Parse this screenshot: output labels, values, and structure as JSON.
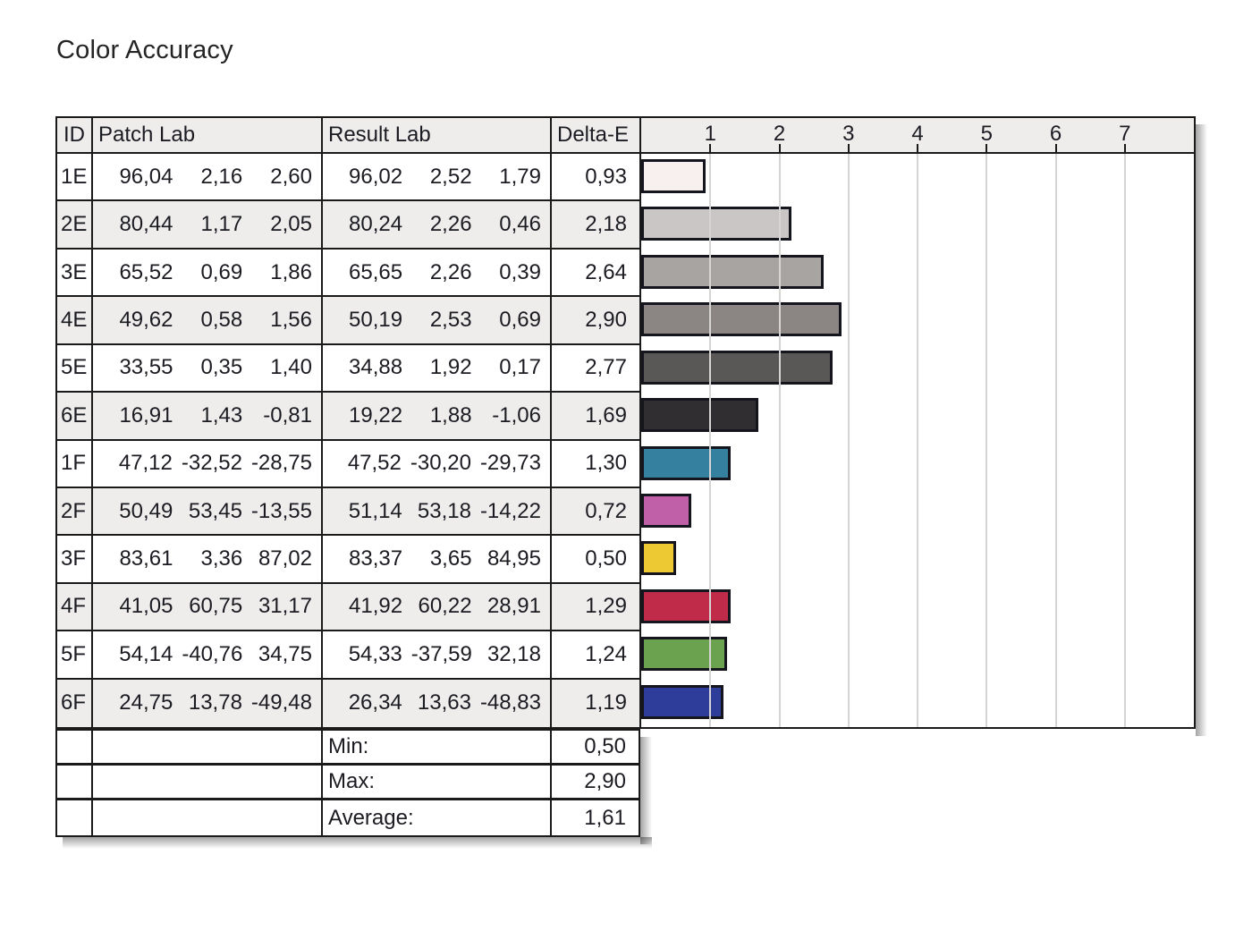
{
  "title": "Color Accuracy",
  "columns": {
    "id": "ID",
    "patch": "Patch Lab",
    "result": "Result Lab",
    "delta": "Delta-E"
  },
  "axis": {
    "ticks": [
      1,
      2,
      3,
      4,
      5,
      6,
      7
    ],
    "max": 8
  },
  "rows": [
    {
      "id": "1E",
      "patch": [
        "96,04",
        "2,16",
        "2,60"
      ],
      "result": [
        "96,02",
        "2,52",
        "1,79"
      ],
      "delta": "0,93",
      "delta_value": 0.93,
      "color": "#f8f0ee"
    },
    {
      "id": "2E",
      "patch": [
        "80,44",
        "1,17",
        "2,05"
      ],
      "result": [
        "80,24",
        "2,26",
        "0,46"
      ],
      "delta": "2,18",
      "delta_value": 2.18,
      "color": "#c9c6c5"
    },
    {
      "id": "3E",
      "patch": [
        "65,52",
        "0,69",
        "1,86"
      ],
      "result": [
        "65,65",
        "2,26",
        "0,39"
      ],
      "delta": "2,64",
      "delta_value": 2.64,
      "color": "#a8a4a2"
    },
    {
      "id": "4E",
      "patch": [
        "49,62",
        "0,58",
        "1,56"
      ],
      "result": [
        "50,19",
        "2,53",
        "0,69"
      ],
      "delta": "2,90",
      "delta_value": 2.9,
      "color": "#8b8684"
    },
    {
      "id": "5E",
      "patch": [
        "33,55",
        "0,35",
        "1,40"
      ],
      "result": [
        "34,88",
        "1,92",
        "0,17"
      ],
      "delta": "2,77",
      "delta_value": 2.77,
      "color": "#5a5757"
    },
    {
      "id": "6E",
      "patch": [
        "16,91",
        "1,43",
        "-0,81"
      ],
      "result": [
        "19,22",
        "1,88",
        "-1,06"
      ],
      "delta": "1,69",
      "delta_value": 1.69,
      "color": "#302e30"
    },
    {
      "id": "1F",
      "patch": [
        "47,12",
        "-32,52",
        "-28,75"
      ],
      "result": [
        "47,52",
        "-30,20",
        "-29,73"
      ],
      "delta": "1,30",
      "delta_value": 1.3,
      "color": "#35809f"
    },
    {
      "id": "2F",
      "patch": [
        "50,49",
        "53,45",
        "-13,55"
      ],
      "result": [
        "51,14",
        "53,18",
        "-14,22"
      ],
      "delta": "0,72",
      "delta_value": 0.72,
      "color": "#bf60a8"
    },
    {
      "id": "3F",
      "patch": [
        "83,61",
        "3,36",
        "87,02"
      ],
      "result": [
        "83,37",
        "3,65",
        "84,95"
      ],
      "delta": "0,50",
      "delta_value": 0.5,
      "color": "#edca33"
    },
    {
      "id": "4F",
      "patch": [
        "41,05",
        "60,75",
        "31,17"
      ],
      "result": [
        "41,92",
        "60,22",
        "28,91"
      ],
      "delta": "1,29",
      "delta_value": 1.29,
      "color": "#bf2b48"
    },
    {
      "id": "5F",
      "patch": [
        "54,14",
        "-40,76",
        "34,75"
      ],
      "result": [
        "54,33",
        "-37,59",
        "32,18"
      ],
      "delta": "1,24",
      "delta_value": 1.24,
      "color": "#6ba24f"
    },
    {
      "id": "6F",
      "patch": [
        "24,75",
        "13,78",
        "-49,48"
      ],
      "result": [
        "26,34",
        "13,63",
        "-48,83"
      ],
      "delta": "1,19",
      "delta_value": 1.19,
      "color": "#2e3d9a"
    }
  ],
  "summary": [
    {
      "label": "Min:",
      "value": "0,50"
    },
    {
      "label": "Max:",
      "value": "2,90"
    },
    {
      "label": "Average:",
      "value": "1,61"
    }
  ],
  "colors": {
    "border": "#1a1a1a",
    "row_shade": "#efedec",
    "gridline": "#d6d5d4",
    "bar_border": "#15151d"
  },
  "chart_data": {
    "type": "bar",
    "orientation": "horizontal",
    "title": "Color Accuracy",
    "xlabel": "Delta-E",
    "categories": [
      "1E",
      "2E",
      "3E",
      "4E",
      "5E",
      "6E",
      "1F",
      "2F",
      "3F",
      "4F",
      "5F",
      "6F"
    ],
    "values": [
      0.93,
      2.18,
      2.64,
      2.9,
      2.77,
      1.69,
      1.3,
      0.72,
      0.5,
      1.29,
      1.24,
      1.19
    ],
    "bar_colors": [
      "#f8f0ee",
      "#c9c6c5",
      "#a8a4a2",
      "#8b8684",
      "#5a5757",
      "#302e30",
      "#35809f",
      "#bf60a8",
      "#edca33",
      "#bf2b48",
      "#6ba24f",
      "#2e3d9a"
    ],
    "min": 0.5,
    "max": 2.9,
    "average": 1.61,
    "xlim": [
      0,
      8
    ],
    "xticks": [
      1,
      2,
      3,
      4,
      5,
      6,
      7
    ],
    "grid": true,
    "legend": false
  }
}
